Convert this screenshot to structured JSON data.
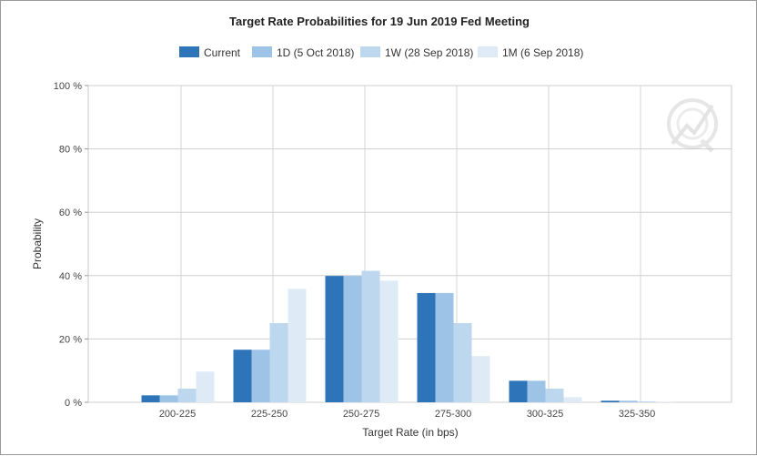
{
  "chart_data": {
    "type": "bar",
    "title": "Target Rate Probabilities for 19 Jun 2019 Fed Meeting",
    "xlabel": "Target Rate (in bps)",
    "ylabel": "Probability",
    "categories": [
      "200-225",
      "225-250",
      "250-275",
      "275-300",
      "300-325",
      "325-350"
    ],
    "y_ticks": [
      "0 %",
      "20 %",
      "40 %",
      "60 %",
      "80 %",
      "100 %"
    ],
    "ylim": [
      0,
      100
    ],
    "grid": true,
    "legend_position": "top",
    "series": [
      {
        "name": "Current",
        "color": "#2e74b8",
        "values": [
          2.2,
          16.6,
          39.9,
          34.5,
          6.8,
          0.5
        ]
      },
      {
        "name": "1D (5 Oct 2018)",
        "color": "#9dc3e6",
        "values": [
          2.2,
          16.6,
          39.9,
          34.5,
          6.8,
          0.5
        ]
      },
      {
        "name": "1W (28 Sep 2018)",
        "color": "#bdd7ee",
        "values": [
          4.3,
          25.0,
          41.5,
          25.0,
          4.3,
          0.3
        ]
      },
      {
        "name": "1M (6 Sep 2018)",
        "color": "#deebf7",
        "values": [
          9.7,
          35.8,
          38.4,
          14.6,
          1.6,
          0.1
        ]
      }
    ]
  }
}
